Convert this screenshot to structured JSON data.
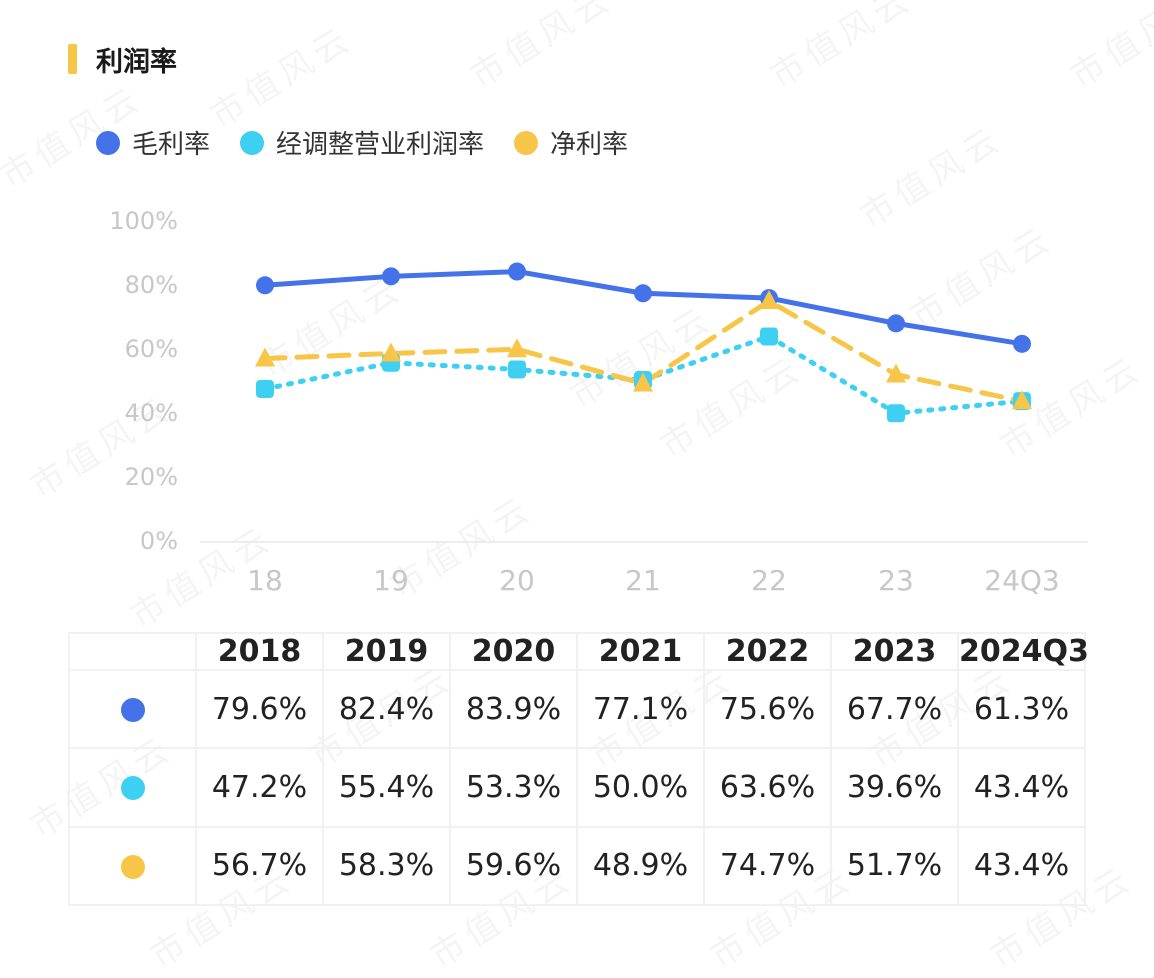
{
  "title": "利润率",
  "colors": {
    "gross": "#4472e8",
    "adjusted_operating": "#3dd0f2",
    "net": "#f7c548",
    "title_accent": "#f7c548",
    "axis": "#c7c7c7"
  },
  "chart_data": {
    "type": "line",
    "categories": [
      "18",
      "19",
      "20",
      "21",
      "22",
      "23",
      "24Q3"
    ],
    "y_ticks": [
      "100%",
      "80%",
      "60%",
      "40%",
      "20%",
      "0%"
    ],
    "ylim": [
      0,
      100
    ],
    "legend_position": "top-left",
    "grid": false,
    "series": [
      {
        "key": "gross",
        "name": "毛利率",
        "style": "solid",
        "marker": "circle",
        "values": [
          79.6,
          82.4,
          83.9,
          77.1,
          75.6,
          67.7,
          61.3
        ]
      },
      {
        "key": "adjusted_operating",
        "name": "经调整营业利润率",
        "style": "dotted",
        "marker": "square",
        "values": [
          47.2,
          55.4,
          53.3,
          50.0,
          63.6,
          39.6,
          43.4
        ]
      },
      {
        "key": "net",
        "name": "净利率",
        "style": "dashed",
        "marker": "triangle",
        "values": [
          56.7,
          58.3,
          59.6,
          48.9,
          74.7,
          51.7,
          43.4
        ]
      }
    ]
  },
  "table": {
    "headers": [
      "2018",
      "2019",
      "2020",
      "2021",
      "2022",
      "2023",
      "2024Q3"
    ],
    "rows": [
      {
        "key": "gross",
        "values": [
          "79.6%",
          "82.4%",
          "83.9%",
          "77.1%",
          "75.6%",
          "67.7%",
          "61.3%"
        ]
      },
      {
        "key": "adjusted_operating",
        "values": [
          "47.2%",
          "55.4%",
          "53.3%",
          "50.0%",
          "63.6%",
          "39.6%",
          "43.4%"
        ]
      },
      {
        "key": "net",
        "values": [
          "56.7%",
          "58.3%",
          "59.6%",
          "48.9%",
          "74.7%",
          "51.7%",
          "43.4%"
        ]
      }
    ]
  },
  "watermark": "市值风云"
}
